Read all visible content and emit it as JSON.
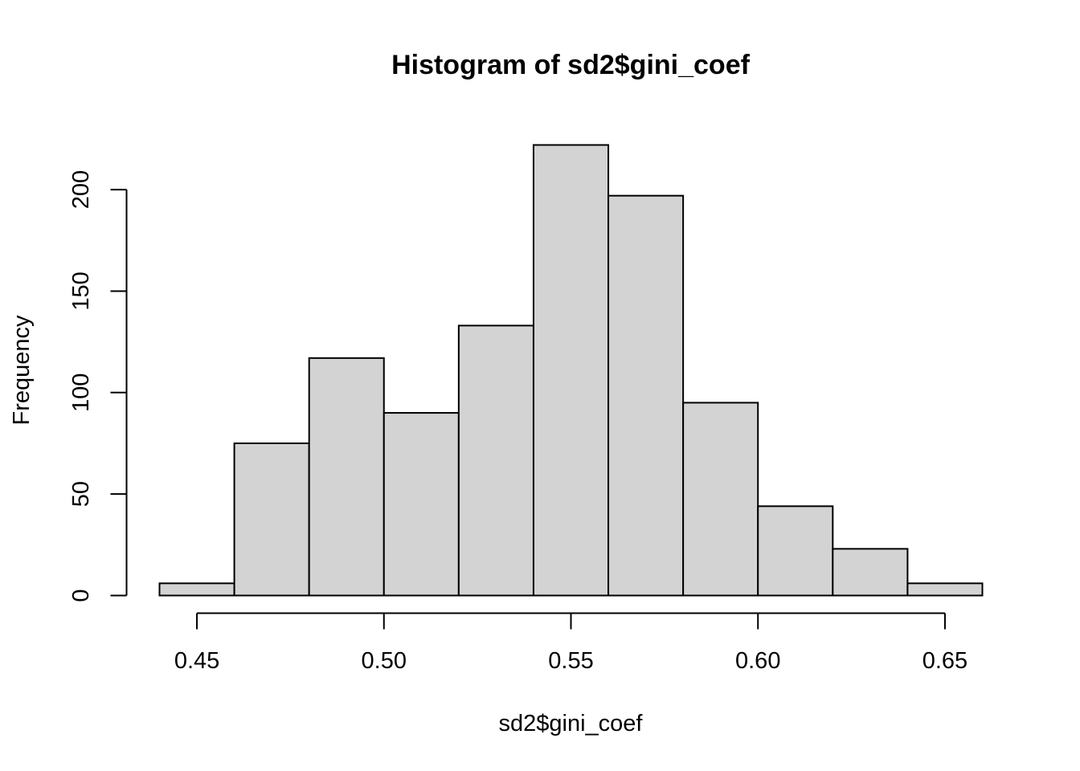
{
  "chart_data": {
    "type": "bar",
    "title": "Histogram of sd2$gini_coef",
    "xlabel": "sd2$gini_coef",
    "ylabel": "Frequency",
    "bins": [
      {
        "start": 0.44,
        "end": 0.46,
        "count": 6
      },
      {
        "start": 0.46,
        "end": 0.48,
        "count": 75
      },
      {
        "start": 0.48,
        "end": 0.5,
        "count": 117
      },
      {
        "start": 0.5,
        "end": 0.52,
        "count": 90
      },
      {
        "start": 0.52,
        "end": 0.54,
        "count": 133
      },
      {
        "start": 0.54,
        "end": 0.56,
        "count": 222
      },
      {
        "start": 0.56,
        "end": 0.58,
        "count": 197
      },
      {
        "start": 0.58,
        "end": 0.6,
        "count": 95
      },
      {
        "start": 0.6,
        "end": 0.62,
        "count": 44
      },
      {
        "start": 0.62,
        "end": 0.64,
        "count": 23
      },
      {
        "start": 0.64,
        "end": 0.66,
        "count": 6
      }
    ],
    "x_ticks": [
      0.45,
      0.5,
      0.55,
      0.6,
      0.65
    ],
    "x_tick_labels": [
      "0.45",
      "0.50",
      "0.55",
      "0.60",
      "0.65"
    ],
    "y_ticks": [
      0,
      50,
      100,
      150,
      200
    ],
    "y_tick_labels": [
      "0",
      "50",
      "100",
      "150",
      "200"
    ],
    "xlim": [
      0.44,
      0.66
    ],
    "ylim": [
      0,
      222
    ],
    "grid": false,
    "colors": {
      "bar_fill": "#d3d3d3",
      "bar_stroke": "#000000"
    }
  }
}
